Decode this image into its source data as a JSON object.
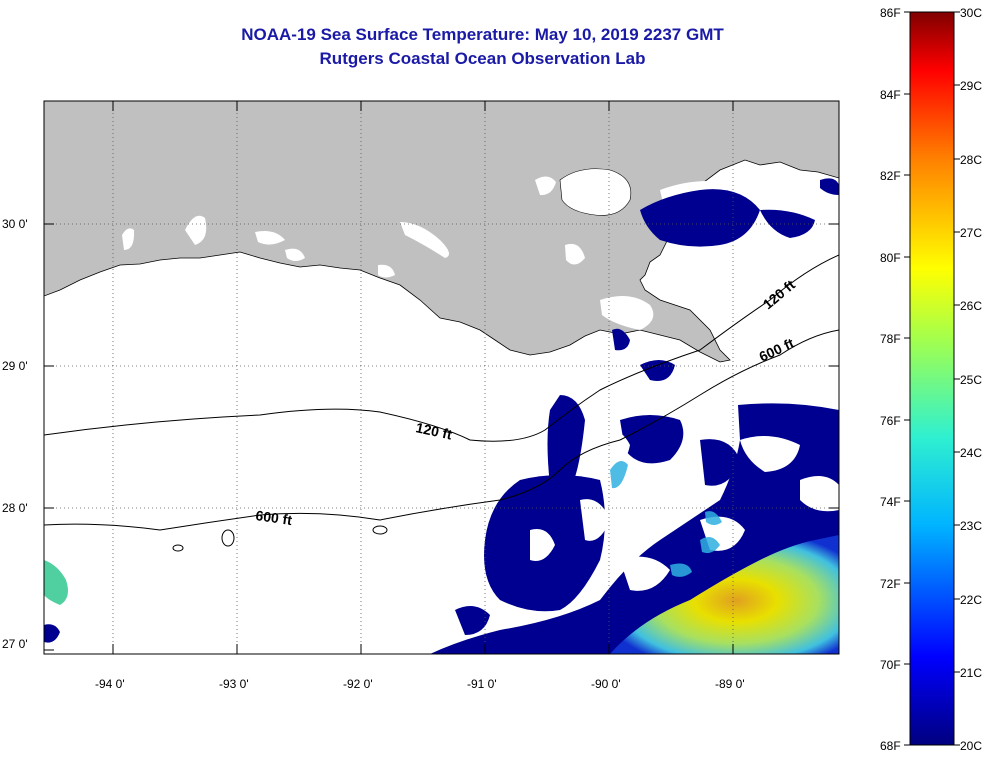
{
  "header": {
    "title": "NOAA-19 Sea Surface Temperature:  May 10, 2019 2237 GMT",
    "subtitle": "Rutgers Coastal Ocean Observation Lab"
  },
  "map": {
    "lon_labels": [
      "-94 0'",
      "-93 0'",
      "-92 0'",
      "-91 0'",
      "-90 0'",
      "-89 0'"
    ],
    "lat_labels": [
      "30 0'",
      "29 0'",
      "28 0'",
      "27 0'"
    ],
    "isobaths": [
      "120 ft",
      "120 ft",
      "600 ft",
      "600 ft"
    ]
  },
  "colorbar": {
    "fahrenheit_labels": [
      "86F",
      "84F",
      "82F",
      "80F",
      "78F",
      "76F",
      "74F",
      "72F",
      "70F",
      "68F"
    ],
    "celsius_labels": [
      "30C",
      "29C",
      "28C",
      "27C",
      "26C",
      "25C",
      "24C",
      "23C",
      "22C",
      "21C",
      "20C"
    ]
  },
  "colors": {
    "land": "#c0c0c0",
    "title": "#1a1aa6",
    "cold": "#000090",
    "warm": "#e8e000"
  }
}
